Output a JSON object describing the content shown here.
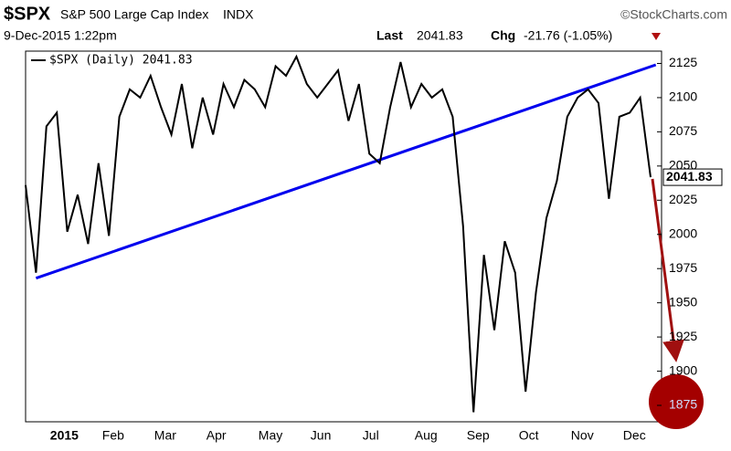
{
  "chart_data": {
    "type": "line",
    "symbol": "$SPX",
    "title": "S&P 500 Large Cap Index",
    "exchange": "INDX",
    "source": "©StockCharts.com",
    "timestamp": "9-Dec-2015 1:22pm",
    "last_label": "Last",
    "change_label": "Chg",
    "change": "-21.76 (-1.05%)",
    "categories": [
      null,
      null,
      "2015",
      null,
      null,
      null,
      null,
      "Feb",
      null,
      null,
      null,
      null,
      "Mar",
      null,
      null,
      null,
      null,
      "Apr",
      null,
      null,
      null,
      null,
      "May",
      null,
      null,
      null,
      null,
      "Jun",
      null,
      null,
      null,
      null,
      "Jul",
      null,
      null,
      null,
      null,
      "Aug",
      null,
      null,
      null,
      null,
      "Sep",
      null,
      null,
      null,
      null,
      "Oct",
      null,
      null,
      null,
      null,
      "Nov",
      null,
      null,
      null,
      null,
      "Dec",
      null,
      null,
      null
    ],
    "series": [
      {
        "name": "$SPX (Daily) 2041.83",
        "color": "#000000",
        "values": [
          2036,
          1972,
          2079,
          2089,
          2002,
          2029,
          1993,
          2052,
          1999,
          2086,
          2106,
          2100,
          2116,
          2093,
          2073,
          2110,
          2063,
          2100,
          2073,
          2110,
          2093,
          2113,
          2106,
          2093,
          2123,
          2116,
          2130,
          2110,
          2100,
          2110,
          2120,
          2083,
          2110,
          2059,
          2052,
          2093,
          2126,
          2093,
          2110,
          2100,
          2106,
          2086,
          2006,
          1870,
          1985,
          1930,
          1995,
          1972,
          1885,
          1958,
          2012,
          2039,
          2086,
          2100,
          2106,
          2096,
          2026,
          2086,
          2089,
          2100,
          2041.83
        ]
      }
    ],
    "trendline": {
      "color": "#0000ee",
      "values": [
        1968,
        2124
      ]
    },
    "ylim": [
      1863,
      2134
    ],
    "yticks": [
      1875,
      1900,
      1925,
      1950,
      1975,
      2000,
      2025,
      2050,
      2075,
      2100,
      2125
    ]
  }
}
